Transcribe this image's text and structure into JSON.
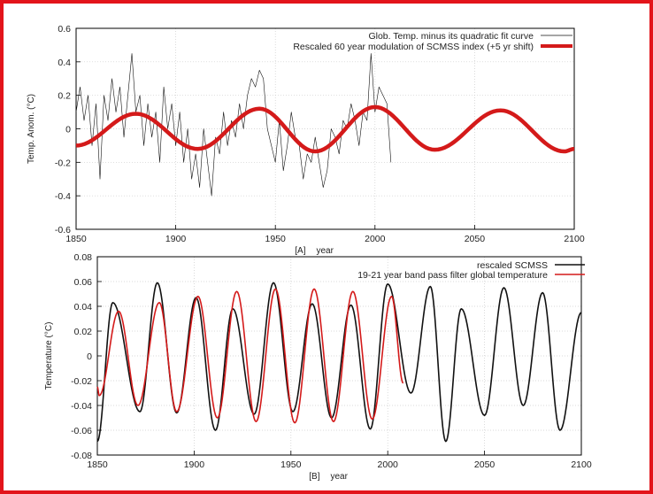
{
  "colors": {
    "border": "#e3141b",
    "series_red": "#d41a1a",
    "series_black": "#111111"
  },
  "chart_data": [
    {
      "type": "line",
      "panel_label": "[A]",
      "xlabel": "year",
      "ylabel": "Temp. Anom. (°C)",
      "xlim": [
        1850,
        2100
      ],
      "ylim": [
        -0.6,
        0.6
      ],
      "xticks": [
        "1850",
        "1900",
        "1950",
        "2000",
        "2050",
        "2100"
      ],
      "yticks": [
        "-0.6",
        "-0.4",
        "-0.2",
        "0",
        "0.2",
        "0.4",
        "0.6"
      ],
      "grid": true,
      "legend_position": "top-right",
      "series": [
        {
          "name": "Glob. Temp. minus its quadratic fit curve",
          "color": "#111111",
          "style": "thin",
          "x": [
            1850,
            1852,
            1854,
            1856,
            1858,
            1860,
            1862,
            1864,
            1866,
            1868,
            1870,
            1872,
            1874,
            1876,
            1878,
            1880,
            1882,
            1884,
            1886,
            1888,
            1890,
            1892,
            1894,
            1896,
            1898,
            1900,
            1902,
            1904,
            1906,
            1908,
            1910,
            1912,
            1914,
            1916,
            1918,
            1920,
            1922,
            1924,
            1926,
            1928,
            1930,
            1932,
            1934,
            1936,
            1938,
            1940,
            1942,
            1944,
            1946,
            1948,
            1950,
            1952,
            1954,
            1956,
            1958,
            1960,
            1962,
            1964,
            1966,
            1968,
            1970,
            1972,
            1974,
            1976,
            1978,
            1980,
            1982,
            1984,
            1986,
            1988,
            1990,
            1992,
            1994,
            1996,
            1998,
            2000,
            2002,
            2004,
            2006,
            2008
          ],
          "y": [
            0.1,
            0.25,
            0.05,
            0.2,
            -0.1,
            0.15,
            -0.3,
            0.2,
            0.05,
            0.3,
            0.1,
            0.25,
            -0.05,
            0.2,
            0.45,
            0.1,
            0.2,
            -0.1,
            0.15,
            -0.05,
            0.1,
            -0.2,
            0.25,
            0.0,
            0.15,
            -0.1,
            0.1,
            -0.2,
            0.0,
            -0.3,
            -0.15,
            -0.35,
            0.0,
            -0.2,
            -0.4,
            -0.05,
            -0.15,
            0.1,
            -0.1,
            0.05,
            -0.05,
            0.15,
            0.0,
            0.2,
            0.3,
            0.25,
            0.35,
            0.3,
            0.0,
            -0.1,
            -0.2,
            0.05,
            -0.25,
            -0.1,
            0.1,
            -0.05,
            -0.1,
            -0.3,
            -0.15,
            -0.2,
            -0.05,
            -0.2,
            -0.35,
            -0.25,
            0.0,
            -0.05,
            -0.15,
            0.05,
            0.0,
            0.15,
            0.05,
            -0.1,
            0.1,
            0.05,
            0.45,
            0.1,
            0.25,
            0.2,
            0.15,
            -0.2
          ]
        },
        {
          "name": "Rescaled 60 year modulation of SCMSS index (+5 yr shift)",
          "color": "#d41a1a",
          "style": "thick",
          "extrema_x": [
            1850,
            1880,
            1911,
            1942,
            1970,
            2000,
            2030,
            2063,
            2095,
            2100
          ],
          "extrema_y": [
            -0.1,
            0.09,
            -0.12,
            0.12,
            -0.135,
            0.13,
            -0.125,
            0.11,
            -0.135,
            -0.12
          ]
        }
      ]
    },
    {
      "type": "line",
      "panel_label": "[B]",
      "xlabel": "year",
      "ylabel": "Temperature (°C)",
      "xlim": [
        1850,
        2100
      ],
      "ylim": [
        -0.08,
        0.08
      ],
      "xticks": [
        "1850",
        "1900",
        "1950",
        "2000",
        "2050",
        "2100"
      ],
      "yticks": [
        "-0.08",
        "-0.06",
        "-0.04",
        "-0.02",
        "0",
        "0.02",
        "0.04",
        "0.06",
        "0.08"
      ],
      "grid": true,
      "legend_position": "top-right",
      "series": [
        {
          "name": "rescaled SCMSS",
          "color": "#111111",
          "style": "medium",
          "extrema_x": [
            1850,
            1858,
            1872,
            1881,
            1891,
            1901,
            1911,
            1920,
            1931,
            1941,
            1951,
            1961,
            1971,
            1981,
            1991,
            2000,
            2012,
            2022,
            2030,
            2038,
            2050,
            2060,
            2070,
            2080,
            2089,
            2100
          ],
          "extrema_y": [
            -0.069,
            0.043,
            -0.045,
            0.059,
            -0.046,
            0.047,
            -0.06,
            0.038,
            -0.047,
            0.059,
            -0.045,
            0.042,
            -0.05,
            0.041,
            -0.059,
            0.058,
            -0.03,
            0.056,
            -0.069,
            0.038,
            -0.048,
            0.055,
            -0.04,
            0.051,
            -0.06,
            0.035
          ]
        },
        {
          "name": "19-21 year band pass filter global temperature",
          "color": "#d41a1a",
          "style": "medium",
          "extrema_x": [
            1850,
            1851,
            1861,
            1871,
            1882,
            1891,
            1902,
            1912,
            1922,
            1932,
            1942,
            1952,
            1962,
            1972,
            1982,
            1992,
            2002,
            2008
          ],
          "extrema_y": [
            -0.025,
            -0.032,
            0.036,
            -0.04,
            0.043,
            -0.045,
            0.048,
            -0.05,
            0.052,
            -0.053,
            0.054,
            -0.054,
            0.054,
            -0.053,
            0.052,
            -0.051,
            0.048,
            -0.022
          ]
        }
      ]
    }
  ]
}
